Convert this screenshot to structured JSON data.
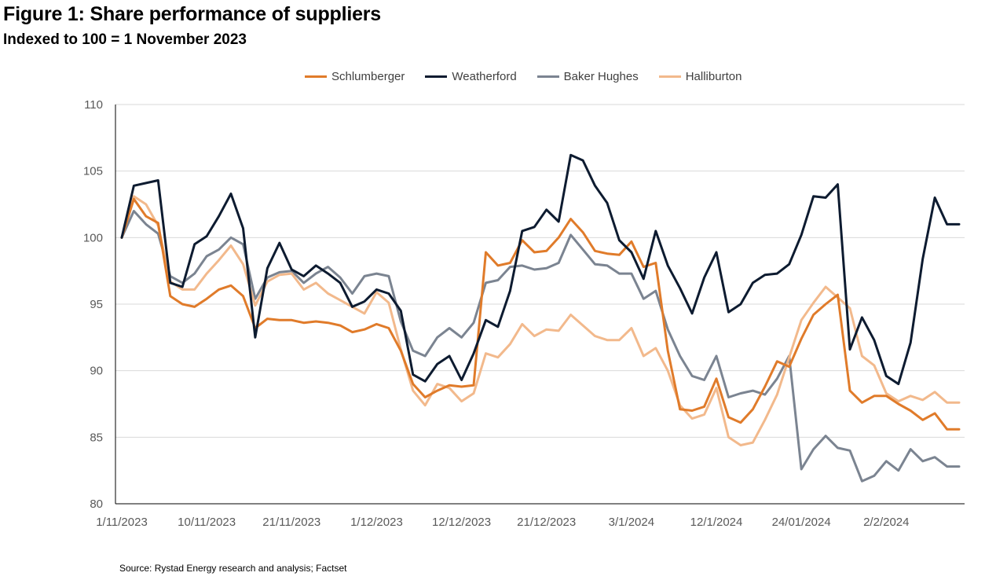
{
  "title": "Figure 1: Share performance of suppliers",
  "subtitle": "Indexed to 100 = 1 November 2023",
  "source": "Source: Rystad Energy research and analysis; Factset",
  "chart_data": {
    "type": "line",
    "title": "Figure 1: Share performance of suppliers",
    "subtitle": "Indexed to 100 = 1 November 2023",
    "xlabel": "",
    "ylabel": "",
    "ylim": [
      80,
      110
    ],
    "yticks": [
      80,
      85,
      90,
      95,
      100,
      105,
      110
    ],
    "grid": "horizontal",
    "legend": "top",
    "x_tick_labels": [
      {
        "label": "1/11/2023",
        "index": 0
      },
      {
        "label": "10/11/2023",
        "index": 7
      },
      {
        "label": "21/11/2023",
        "index": 14
      },
      {
        "label": "1/12/2023",
        "index": 21
      },
      {
        "label": "12/12/2023",
        "index": 28
      },
      {
        "label": "21/12/2023",
        "index": 35
      },
      {
        "label": "3/1/2024",
        "index": 42
      },
      {
        "label": "12/1/2024",
        "index": 49
      },
      {
        "label": "24/01/2024",
        "index": 56
      },
      {
        "label": "2/2/2024",
        "index": 63
      }
    ],
    "series": [
      {
        "name": "Schlumberger",
        "color": "#E07B2A",
        "values": [
          100,
          102.9,
          101.6,
          101.1,
          95.6,
          95.0,
          94.8,
          95.4,
          96.1,
          96.4,
          95.6,
          93.2,
          93.9,
          93.8,
          93.8,
          93.6,
          93.7,
          93.6,
          93.4,
          92.9,
          93.1,
          93.5,
          93.2,
          91.5,
          89.0,
          88.0,
          88.5,
          88.9,
          88.8,
          88.9,
          98.9,
          97.9,
          98.1,
          99.8,
          98.9,
          99.0,
          100.0,
          101.4,
          100.4,
          99.0,
          98.8,
          98.7,
          99.7,
          97.8,
          98.1,
          91.5,
          87.1,
          87.0,
          87.3,
          89.4,
          86.5,
          86.1,
          87.1,
          88.8,
          90.7,
          90.3,
          92.4,
          94.2,
          95.0,
          95.7,
          88.5,
          87.6,
          88.1,
          88.1,
          87.5,
          87.0,
          86.3,
          86.8,
          85.6,
          85.6
        ]
      },
      {
        "name": "Weatherford",
        "color": "#0D1B30",
        "values": [
          100,
          103.9,
          104.1,
          104.3,
          96.6,
          96.3,
          99.5,
          100.1,
          101.6,
          103.3,
          100.7,
          92.5,
          97.7,
          99.6,
          97.6,
          97.1,
          97.9,
          97.3,
          96.6,
          94.8,
          95.2,
          96.1,
          95.8,
          94.5,
          89.7,
          89.2,
          90.5,
          91.1,
          89.3,
          91.3,
          93.8,
          93.3,
          96.0,
          100.5,
          100.8,
          102.1,
          101.2,
          106.2,
          105.8,
          103.9,
          102.6,
          99.8,
          98.9,
          96.9,
          100.5,
          97.9,
          96.2,
          94.3,
          97.0,
          98.9,
          94.4,
          95.0,
          96.6,
          97.2,
          97.3,
          98.0,
          100.2,
          103.1,
          103.0,
          104.0,
          91.6,
          94.0,
          92.3,
          89.6,
          89.0,
          92.1,
          98.4,
          103.0,
          101.0,
          101.0
        ]
      },
      {
        "name": "Baker Hughes",
        "color": "#7B8491",
        "values": [
          100,
          102.0,
          101.0,
          100.3,
          97.1,
          96.6,
          97.3,
          98.6,
          99.1,
          100.0,
          99.5,
          95.4,
          97.0,
          97.4,
          97.5,
          96.6,
          97.3,
          97.8,
          97.0,
          95.8,
          97.1,
          97.3,
          97.1,
          93.7,
          91.5,
          91.1,
          92.5,
          93.2,
          92.5,
          93.6,
          96.6,
          96.8,
          97.8,
          97.9,
          97.6,
          97.7,
          98.1,
          100.2,
          99.1,
          98.0,
          97.9,
          97.3,
          97.3,
          95.4,
          96.0,
          93.1,
          91.1,
          89.6,
          89.3,
          91.1,
          88.0,
          88.3,
          88.5,
          88.2,
          89.4,
          91.1,
          82.6,
          84.1,
          85.1,
          84.2,
          84.0,
          81.7,
          82.1,
          83.2,
          82.5,
          84.1,
          83.2,
          83.5,
          82.8,
          82.8
        ]
      },
      {
        "name": "Halliburton",
        "color": "#F2B98C",
        "values": [
          100,
          103.1,
          102.5,
          100.9,
          96.7,
          96.1,
          96.1,
          97.3,
          98.3,
          99.4,
          98.0,
          94.9,
          96.7,
          97.2,
          97.3,
          96.1,
          96.6,
          95.8,
          95.3,
          94.8,
          94.3,
          95.9,
          95.1,
          91.6,
          88.5,
          87.4,
          89.0,
          88.7,
          87.7,
          88.3,
          91.3,
          91.0,
          92.0,
          93.5,
          92.6,
          93.1,
          93.0,
          94.2,
          93.4,
          92.6,
          92.3,
          92.3,
          93.2,
          91.1,
          91.7,
          90.0,
          87.4,
          86.4,
          86.7,
          88.7,
          85.0,
          84.4,
          84.6,
          86.3,
          88.2,
          91.0,
          93.8,
          95.1,
          96.3,
          95.5,
          94.7,
          91.1,
          90.4,
          88.3,
          87.7,
          88.1,
          87.8,
          88.4,
          87.6,
          87.6
        ]
      }
    ]
  }
}
